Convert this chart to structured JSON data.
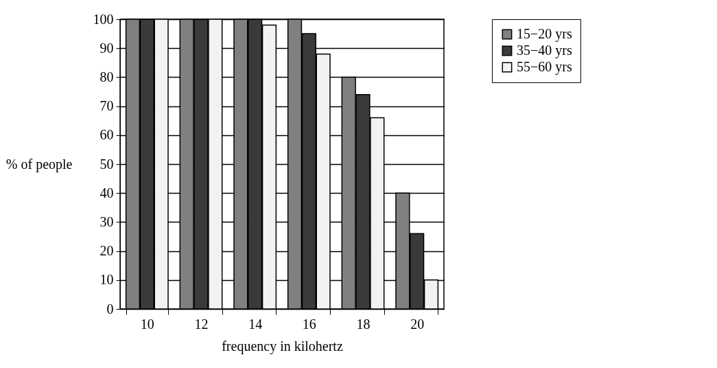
{
  "chart_data": {
    "type": "bar",
    "xlabel": "frequency in kilohertz",
    "ylabel": "% of people",
    "categories": [
      "10",
      "12",
      "14",
      "16",
      "18",
      "20"
    ],
    "series": [
      {
        "name": "15−20 yrs",
        "color": "#808080",
        "values": [
          100,
          100,
          100,
          100,
          80,
          40
        ]
      },
      {
        "name": "35−40 yrs",
        "color": "#3a3a3a",
        "values": [
          100,
          100,
          100,
          95,
          74,
          26
        ]
      },
      {
        "name": "55−60 yrs",
        "color": "#f2f2f2",
        "values": [
          100,
          100,
          98,
          88,
          66,
          10
        ]
      }
    ],
    "ylim": [
      0,
      100
    ],
    "yticks": [
      0,
      10,
      20,
      30,
      40,
      50,
      60,
      70,
      80,
      90,
      100
    ],
    "grid": "y",
    "legend": "right"
  }
}
